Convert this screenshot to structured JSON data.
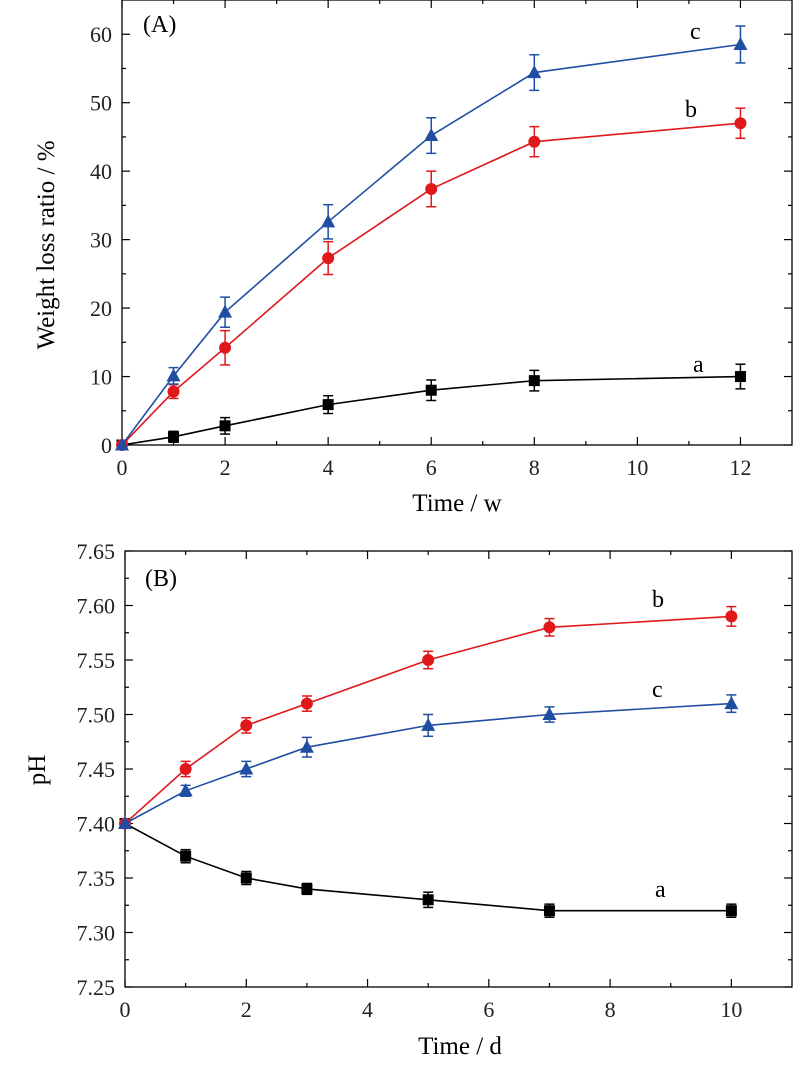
{
  "chart_data": [
    {
      "type": "line",
      "panel_label": "(A)",
      "xlabel": "Time / w",
      "ylabel": "Weight loss ratio / %",
      "xlim": [
        0,
        13
      ],
      "ylim": [
        0,
        65
      ],
      "xticks": [
        0,
        2,
        4,
        6,
        8,
        10,
        12
      ],
      "yticks": [
        0,
        10,
        20,
        30,
        40,
        50,
        60
      ],
      "x": [
        0,
        1,
        2,
        4,
        6,
        8,
        12
      ],
      "grid": false,
      "series": [
        {
          "name": "a",
          "color": "#000000",
          "marker": "square",
          "values": [
            0,
            1.2,
            2.8,
            5.9,
            8.0,
            9.4,
            10.0
          ],
          "errors": [
            0,
            0.8,
            1.2,
            1.3,
            1.5,
            1.5,
            1.8
          ]
        },
        {
          "name": "b",
          "color": "#e0181c",
          "marker": "circle",
          "values": [
            0,
            7.8,
            14.2,
            27.3,
            37.4,
            44.3,
            47.0
          ],
          "errors": [
            0,
            1.0,
            2.5,
            2.4,
            2.6,
            2.2,
            2.2
          ]
        },
        {
          "name": "c",
          "color": "#1f4ea3",
          "marker": "triangle",
          "values": [
            0,
            10.1,
            19.4,
            32.6,
            45.2,
            54.4,
            58.5
          ],
          "errors": [
            0,
            1.2,
            2.2,
            2.5,
            2.6,
            2.6,
            2.7
          ]
        }
      ]
    },
    {
      "type": "line",
      "panel_label": "(B)",
      "xlabel": "Time / d",
      "ylabel": "pH",
      "xlim": [
        0,
        11
      ],
      "ylim": [
        7.25,
        7.65
      ],
      "xticks": [
        0,
        2,
        4,
        6,
        8,
        10
      ],
      "yticks": [
        7.25,
        7.3,
        7.35,
        7.4,
        7.45,
        7.5,
        7.55,
        7.6,
        7.65
      ],
      "x": [
        0,
        1,
        2,
        3,
        5,
        7,
        10
      ],
      "grid": false,
      "series": [
        {
          "name": "a",
          "color": "#000000",
          "marker": "square",
          "values": [
            7.4,
            7.37,
            7.35,
            7.34,
            7.33,
            7.32,
            7.32
          ],
          "errors": [
            0,
            0.006,
            0.006,
            0.005,
            0.007,
            0.006,
            0.006
          ]
        },
        {
          "name": "b",
          "color": "#e0181c",
          "marker": "circle",
          "values": [
            7.4,
            7.45,
            7.49,
            7.51,
            7.55,
            7.58,
            7.59
          ],
          "errors": [
            0,
            0.007,
            0.007,
            0.007,
            0.008,
            0.008,
            0.009
          ]
        },
        {
          "name": "c",
          "color": "#1f4ea3",
          "marker": "triangle",
          "values": [
            7.4,
            7.43,
            7.45,
            7.47,
            7.49,
            7.5,
            7.51
          ],
          "errors": [
            0,
            0.005,
            0.007,
            0.009,
            0.01,
            0.007,
            0.008
          ]
        }
      ]
    }
  ]
}
